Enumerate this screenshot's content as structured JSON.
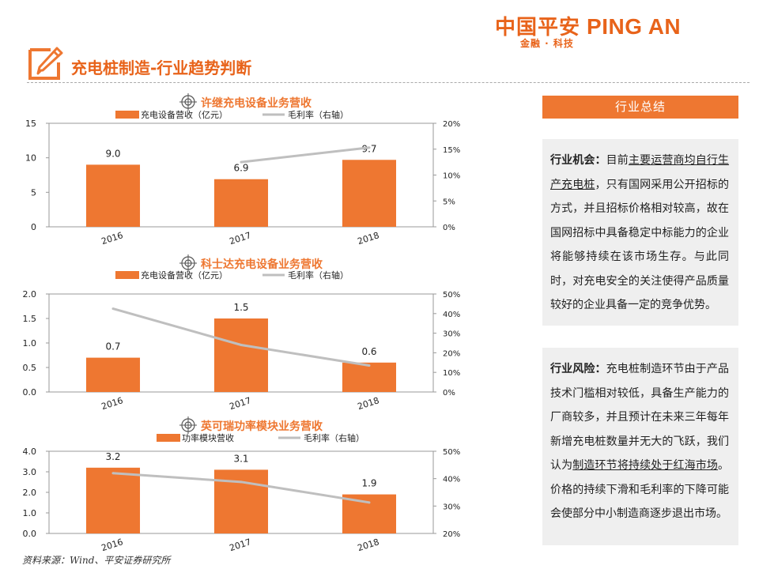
{
  "brand": {
    "name_cn": "中国平安",
    "name_en": "PING AN",
    "tagline": "金融 · 科技"
  },
  "page_title": "充电桩制造-行业趋势判断",
  "chart_data": [
    {
      "type": "bar",
      "title": "许继充电设备业务营收",
      "categories": [
        "2016",
        "2017",
        "2018"
      ],
      "series": [
        {
          "name": "充电设备营收（亿元）",
          "type": "bar",
          "values": [
            9.0,
            6.9,
            9.7
          ],
          "labels": [
            "9.0",
            "6.9",
            "9.7"
          ]
        },
        {
          "name": "毛利率（右轴）",
          "type": "line",
          "values": [
            null,
            12.5,
            15.3
          ]
        }
      ],
      "left_axis": {
        "min": 0,
        "max": 15,
        "ticks": [
          "0",
          "5",
          "10",
          "15"
        ]
      },
      "right_axis": {
        "min": 0,
        "max": 20,
        "ticks": [
          "0%",
          "5%",
          "10%",
          "15%",
          "20%"
        ]
      }
    },
    {
      "type": "bar",
      "title": "科士达充电设备业务营收",
      "categories": [
        "2016",
        "2017",
        "2018"
      ],
      "series": [
        {
          "name": "充电设备营收（亿元）",
          "type": "bar",
          "values": [
            0.7,
            1.5,
            0.6
          ],
          "labels": [
            "0.7",
            "1.5",
            "0.6"
          ]
        },
        {
          "name": "毛利率（右轴）",
          "type": "line",
          "values": [
            42.5,
            24.0,
            13.5
          ]
        }
      ],
      "left_axis": {
        "min": 0,
        "max": 2,
        "ticks": [
          "0.0",
          "0.5",
          "1.0",
          "1.5",
          "2.0"
        ]
      },
      "right_axis": {
        "min": 0,
        "max": 50,
        "ticks": [
          "0%",
          "10%",
          "20%",
          "30%",
          "40%",
          "50%"
        ]
      }
    },
    {
      "type": "bar",
      "title": "英可瑞功率模块业务营收",
      "categories": [
        "2016",
        "2017",
        "2018"
      ],
      "series": [
        {
          "name": "功率模块营收",
          "type": "bar",
          "values": [
            3.2,
            3.1,
            1.9
          ],
          "labels": [
            "3.2",
            "3.1",
            "1.9"
          ]
        },
        {
          "name": "毛利率（右轴）",
          "type": "line",
          "values": [
            42.0,
            38.8,
            31.3
          ]
        }
      ],
      "left_axis": {
        "min": 0,
        "max": 4,
        "ticks": [
          "0.0",
          "1.0",
          "2.0",
          "3.0",
          "4.0"
        ]
      },
      "right_axis": {
        "min": 20,
        "max": 50,
        "ticks": [
          "20%",
          "30%",
          "40%",
          "50%"
        ]
      }
    }
  ],
  "colors": {
    "accent": "#ee7731",
    "bar": "#ee7731",
    "line": "#bfbfbf",
    "box_bg": "#efefef"
  },
  "summary": {
    "header": "行业总结",
    "opportunity_label": "行业机会：",
    "opportunity_pre": "目前",
    "opportunity_underlined": "主要运营商均自行生产充电桩",
    "opportunity_post": "，只有国网采用公开招标的方式，并且招标价格相对较高，故在国网招标中具备稳定中标能力的企业将能够持续在该市场生存。与此同时，对充电安全的关注使得产品质量较好的企业具备一定的竞争优势。",
    "risk_label": "行业风险：",
    "risk_pre": "充电桩制造环节由于产品技术门槛相对较低，具备生产能力的厂商较多，并且预计在未来三年每年新增充电桩数量并无大的飞跃，我们认为",
    "risk_underlined": "制造环节将持续处于红海市场",
    "risk_post": "。价格的持续下滑和毛利率的下降可能会使部分中小制造商逐步退出市场。"
  },
  "source": "资料来源：Wind、平安证券研究所"
}
